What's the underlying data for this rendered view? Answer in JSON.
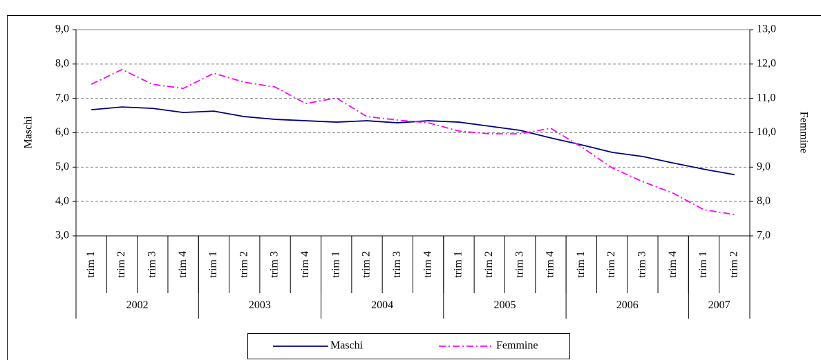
{
  "chart_data": {
    "type": "line",
    "categories": [
      "trim 1",
      "trim 2",
      "trim 3",
      "trim 4",
      "trim 1",
      "trim 2",
      "trim 3",
      "trim 4",
      "trim 1",
      "trim 2",
      "trim 3",
      "trim 4",
      "trim 1",
      "trim 2",
      "trim 3",
      "trim 4",
      "trim 1",
      "trim 2",
      "trim 3",
      "trim 4",
      "trim 1",
      "trim 2"
    ],
    "year_groups": [
      {
        "label": "2002",
        "count": 4
      },
      {
        "label": "2003",
        "count": 4
      },
      {
        "label": "2004",
        "count": 4
      },
      {
        "label": "2005",
        "count": 4
      },
      {
        "label": "2006",
        "count": 4
      },
      {
        "label": "2007",
        "count": 2
      }
    ],
    "y_label": "Maschi",
    "y2_label": "Femmine",
    "ylim": [
      3,
      9
    ],
    "yticks": [
      {
        "value": 3,
        "label": "3,0"
      },
      {
        "value": 4,
        "label": "4,0"
      },
      {
        "value": 5,
        "label": "5,0"
      },
      {
        "value": 6,
        "label": "6,0"
      },
      {
        "value": 7,
        "label": "7,0"
      },
      {
        "value": 8,
        "label": "8,0"
      },
      {
        "value": 9,
        "label": "9,0"
      }
    ],
    "y2lim": [
      7,
      13
    ],
    "y2ticks": [
      {
        "value": 7,
        "label": "7,0"
      },
      {
        "value": 8,
        "label": "8,0"
      },
      {
        "value": 9,
        "label": "9,0"
      },
      {
        "value": 10,
        "label": "10,0"
      },
      {
        "value": 11,
        "label": "11,0"
      },
      {
        "value": 12,
        "label": "12,0"
      },
      {
        "value": 13,
        "label": "13,0"
      }
    ],
    "grid": true,
    "legend": "bottom",
    "series": [
      {
        "name": "Maschi",
        "color": "#000080",
        "axis": "y",
        "values": [
          6.67,
          6.75,
          6.71,
          6.59,
          6.63,
          6.47,
          6.39,
          6.35,
          6.31,
          6.35,
          6.29,
          6.35,
          6.31,
          6.19,
          6.07,
          5.85,
          5.65,
          5.43,
          5.31,
          5.12,
          4.94,
          4.78
        ]
      },
      {
        "name": "Femmine",
        "color": "#ff00ff",
        "axis": "y2",
        "values": [
          11.41,
          11.84,
          11.41,
          11.29,
          11.73,
          11.47,
          11.33,
          10.85,
          11.01,
          10.47,
          10.37,
          10.29,
          10.05,
          9.97,
          9.97,
          10.13,
          9.59,
          8.98,
          8.58,
          8.24,
          7.76,
          7.62
        ]
      }
    ]
  }
}
